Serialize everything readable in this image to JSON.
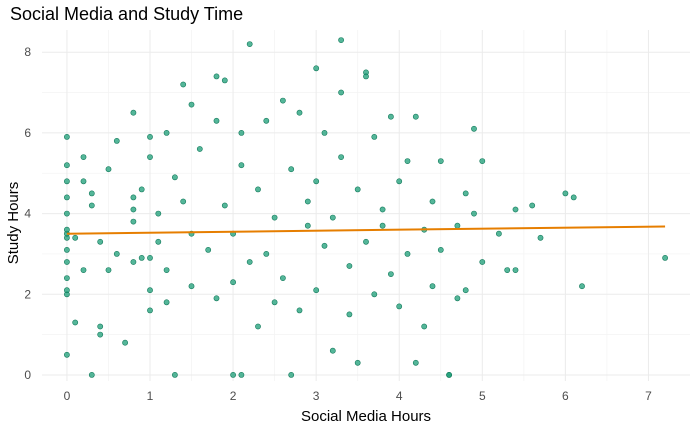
{
  "chart_data": {
    "type": "scatter",
    "title": "Social Media and Study Time",
    "xlabel": "Social Media Hours",
    "ylabel": "Study Hours",
    "xlim": [
      -0.3,
      7.5
    ],
    "ylim": [
      -0.15,
      8.55
    ],
    "x_ticks": [
      0,
      1,
      2,
      3,
      4,
      5,
      6,
      7
    ],
    "y_ticks": [
      0,
      2,
      4,
      6,
      8
    ],
    "grid": true,
    "point_color": "#1b9e77",
    "point_stroke": "#137a5b",
    "line_color": "#e67e00",
    "trend_line": [
      [
        0,
        3.5
      ],
      [
        7.2,
        3.68
      ]
    ],
    "points": [
      [
        0.0,
        0.5
      ],
      [
        0.0,
        2.0
      ],
      [
        0.0,
        2.1
      ],
      [
        0.0,
        2.4
      ],
      [
        0.0,
        2.8
      ],
      [
        0.0,
        3.1
      ],
      [
        0.0,
        3.4
      ],
      [
        0.0,
        3.5
      ],
      [
        0.0,
        3.6
      ],
      [
        0.0,
        4.0
      ],
      [
        0.0,
        4.4
      ],
      [
        0.0,
        4.8
      ],
      [
        0.0,
        5.2
      ],
      [
        0.0,
        5.9
      ],
      [
        0.1,
        1.3
      ],
      [
        0.1,
        3.4
      ],
      [
        0.2,
        2.6
      ],
      [
        0.2,
        4.8
      ],
      [
        0.2,
        5.4
      ],
      [
        0.3,
        0.0
      ],
      [
        0.3,
        4.2
      ],
      [
        0.3,
        4.5
      ],
      [
        0.4,
        1.0
      ],
      [
        0.4,
        1.2
      ],
      [
        0.4,
        3.3
      ],
      [
        0.5,
        2.6
      ],
      [
        0.5,
        5.1
      ],
      [
        0.6,
        3.0
      ],
      [
        0.6,
        5.8
      ],
      [
        0.7,
        0.8
      ],
      [
        0.8,
        2.8
      ],
      [
        0.8,
        3.8
      ],
      [
        0.8,
        4.1
      ],
      [
        0.8,
        4.4
      ],
      [
        0.8,
        6.5
      ],
      [
        0.9,
        2.9
      ],
      [
        0.9,
        4.6
      ],
      [
        1.0,
        1.6
      ],
      [
        1.0,
        2.1
      ],
      [
        1.0,
        2.9
      ],
      [
        1.0,
        5.4
      ],
      [
        1.0,
        5.9
      ],
      [
        1.1,
        3.3
      ],
      [
        1.1,
        4.0
      ],
      [
        1.2,
        6.0
      ],
      [
        1.2,
        2.6
      ],
      [
        1.2,
        1.8
      ],
      [
        1.3,
        0.0
      ],
      [
        1.3,
        4.9
      ],
      [
        1.4,
        7.2
      ],
      [
        1.4,
        4.3
      ],
      [
        1.5,
        3.5
      ],
      [
        1.5,
        6.7
      ],
      [
        1.5,
        2.2
      ],
      [
        1.6,
        5.6
      ],
      [
        1.7,
        3.1
      ],
      [
        1.8,
        7.4
      ],
      [
        1.8,
        6.3
      ],
      [
        1.8,
        1.9
      ],
      [
        1.9,
        7.3
      ],
      [
        1.9,
        4.2
      ],
      [
        2.0,
        0.0
      ],
      [
        2.0,
        3.5
      ],
      [
        2.0,
        2.3
      ],
      [
        2.1,
        0.0
      ],
      [
        2.1,
        5.2
      ],
      [
        2.1,
        6.0
      ],
      [
        2.2,
        8.2
      ],
      [
        2.2,
        2.8
      ],
      [
        2.3,
        4.6
      ],
      [
        2.3,
        1.2
      ],
      [
        2.4,
        3.0
      ],
      [
        2.4,
        6.3
      ],
      [
        2.5,
        1.8
      ],
      [
        2.5,
        3.9
      ],
      [
        2.6,
        6.8
      ],
      [
        2.6,
        2.4
      ],
      [
        2.7,
        0.0
      ],
      [
        2.7,
        5.1
      ],
      [
        2.8,
        6.5
      ],
      [
        2.8,
        1.6
      ],
      [
        2.9,
        3.7
      ],
      [
        2.9,
        4.3
      ],
      [
        3.0,
        7.6
      ],
      [
        3.0,
        2.1
      ],
      [
        3.0,
        4.8
      ],
      [
        3.1,
        3.2
      ],
      [
        3.1,
        6.0
      ],
      [
        3.2,
        0.6
      ],
      [
        3.2,
        3.9
      ],
      [
        3.3,
        7.0
      ],
      [
        3.3,
        5.4
      ],
      [
        3.3,
        8.3
      ],
      [
        3.4,
        1.5
      ],
      [
        3.4,
        2.7
      ],
      [
        3.5,
        4.6
      ],
      [
        3.5,
        0.3
      ],
      [
        3.6,
        7.5
      ],
      [
        3.6,
        7.4
      ],
      [
        3.6,
        3.3
      ],
      [
        3.7,
        5.9
      ],
      [
        3.7,
        2.0
      ],
      [
        3.8,
        4.1
      ],
      [
        3.8,
        3.7
      ],
      [
        3.9,
        6.4
      ],
      [
        3.9,
        2.5
      ],
      [
        4.0,
        4.8
      ],
      [
        4.0,
        1.7
      ],
      [
        4.1,
        3.0
      ],
      [
        4.1,
        5.3
      ],
      [
        4.2,
        0.3
      ],
      [
        4.2,
        6.4
      ],
      [
        4.3,
        3.6
      ],
      [
        4.3,
        1.2
      ],
      [
        4.4,
        4.3
      ],
      [
        4.4,
        2.2
      ],
      [
        4.5,
        5.3
      ],
      [
        4.5,
        3.1
      ],
      [
        4.6,
        0.0
      ],
      [
        4.6,
        0.0
      ],
      [
        4.7,
        3.7
      ],
      [
        4.7,
        1.9
      ],
      [
        4.8,
        4.5
      ],
      [
        4.8,
        2.1
      ],
      [
        4.9,
        4.0
      ],
      [
        4.9,
        6.1
      ],
      [
        5.0,
        2.8
      ],
      [
        5.0,
        5.3
      ],
      [
        5.2,
        3.5
      ],
      [
        5.3,
        2.6
      ],
      [
        5.4,
        2.6
      ],
      [
        5.4,
        4.1
      ],
      [
        5.6,
        4.2
      ],
      [
        5.7,
        3.4
      ],
      [
        6.0,
        4.5
      ],
      [
        6.1,
        4.4
      ],
      [
        6.2,
        2.2
      ],
      [
        7.2,
        2.9
      ]
    ]
  }
}
